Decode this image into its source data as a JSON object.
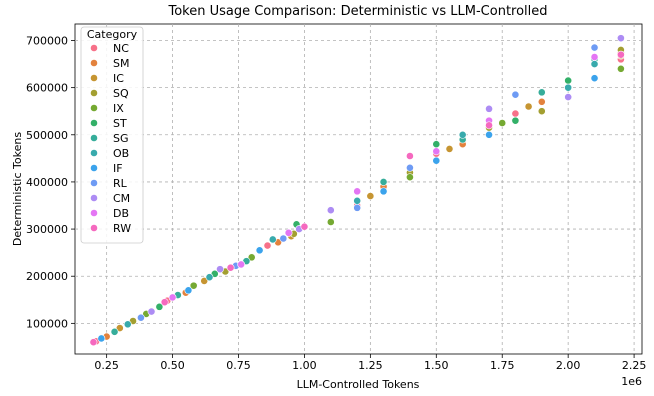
{
  "chart_data": {
    "type": "scatter",
    "title": "Token Usage Comparison: Deterministic vs LLM-Controlled",
    "xlabel": "LLM-Controlled Tokens",
    "ylabel": "Deterministic Tokens",
    "x_offset_label": "1e6",
    "xlim": [
      0.13,
      2.28
    ],
    "ylim": [
      35000,
      735000
    ],
    "x_ticks": [
      0.25,
      0.5,
      0.75,
      1.0,
      1.25,
      1.5,
      1.75,
      2.0,
      2.25
    ],
    "x_tick_labels": [
      "0.25",
      "0.50",
      "0.75",
      "1.00",
      "1.25",
      "1.50",
      "1.75",
      "2.00",
      "2.25"
    ],
    "y_ticks": [
      100000,
      200000,
      300000,
      400000,
      500000,
      600000,
      700000
    ],
    "y_tick_labels": [
      "100000",
      "200000",
      "300000",
      "400000",
      "500000",
      "600000",
      "700000"
    ],
    "grid": true,
    "legend": {
      "title": "Category",
      "placement": "top-left"
    },
    "series": [
      {
        "name": "NC",
        "color": "#f77189",
        "points": [
          [
            0.21,
            62000
          ],
          [
            0.48,
            148000
          ],
          [
            0.86,
            265000
          ],
          [
            1.2,
            350000
          ],
          [
            1.5,
            460000
          ],
          [
            1.8,
            545000
          ],
          [
            2.2,
            660000
          ]
        ]
      },
      {
        "name": "SM",
        "color": "#e3823d",
        "points": [
          [
            0.25,
            72000
          ],
          [
            0.55,
            165000
          ],
          [
            0.9,
            272000
          ],
          [
            1.3,
            390000
          ],
          [
            1.6,
            480000
          ],
          [
            1.9,
            570000
          ],
          [
            2.2,
            675000
          ]
        ]
      },
      {
        "name": "IC",
        "color": "#c69532",
        "points": [
          [
            0.3,
            90000
          ],
          [
            0.62,
            190000
          ],
          [
            0.95,
            285000
          ],
          [
            1.25,
            370000
          ],
          [
            1.55,
            470000
          ],
          [
            1.85,
            560000
          ],
          [
            2.2,
            668000
          ]
        ]
      },
      {
        "name": "SQ",
        "color": "#a39f31",
        "points": [
          [
            0.35,
            105000
          ],
          [
            0.7,
            210000
          ],
          [
            0.96,
            290000
          ],
          [
            1.4,
            420000
          ],
          [
            1.7,
            515000
          ],
          [
            1.9,
            550000
          ],
          [
            2.2,
            680000
          ]
        ]
      },
      {
        "name": "IX",
        "color": "#75a932",
        "points": [
          [
            0.4,
            120000
          ],
          [
            0.58,
            180000
          ],
          [
            0.8,
            240000
          ],
          [
            1.1,
            315000
          ],
          [
            1.4,
            410000
          ],
          [
            1.75,
            525000
          ],
          [
            2.2,
            640000
          ]
        ]
      },
      {
        "name": "ST",
        "color": "#33b068",
        "points": [
          [
            0.45,
            135000
          ],
          [
            0.66,
            205000
          ],
          [
            0.97,
            310000
          ],
          [
            1.5,
            480000
          ],
          [
            1.8,
            530000
          ],
          [
            2.0,
            615000
          ]
        ]
      },
      {
        "name": "SG",
        "color": "#36ad9a",
        "points": [
          [
            0.28,
            82000
          ],
          [
            0.52,
            160000
          ],
          [
            0.78,
            232000
          ],
          [
            1.3,
            400000
          ],
          [
            1.6,
            490000
          ],
          [
            1.9,
            590000
          ],
          [
            2.1,
            660000
          ]
        ]
      },
      {
        "name": "OB",
        "color": "#38aaac",
        "points": [
          [
            0.33,
            98000
          ],
          [
            0.64,
            198000
          ],
          [
            0.88,
            278000
          ],
          [
            1.2,
            360000
          ],
          [
            1.6,
            500000
          ],
          [
            2.0,
            600000
          ],
          [
            2.1,
            650000
          ]
        ]
      },
      {
        "name": "IF",
        "color": "#3ba3ec",
        "points": [
          [
            0.23,
            68000
          ],
          [
            0.56,
            170000
          ],
          [
            0.83,
            255000
          ],
          [
            1.3,
            380000
          ],
          [
            1.5,
            445000
          ],
          [
            1.7,
            500000
          ],
          [
            2.1,
            620000
          ]
        ]
      },
      {
        "name": "RL",
        "color": "#6e9bf4",
        "points": [
          [
            0.38,
            112000
          ],
          [
            0.74,
            222000
          ],
          [
            0.92,
            280000
          ],
          [
            1.2,
            345000
          ],
          [
            1.4,
            430000
          ],
          [
            1.8,
            585000
          ],
          [
            2.1,
            685000
          ]
        ]
      },
      {
        "name": "CM",
        "color": "#ad8cf4",
        "points": [
          [
            0.42,
            125000
          ],
          [
            0.68,
            215000
          ],
          [
            0.98,
            300000
          ],
          [
            1.1,
            340000
          ],
          [
            1.7,
            555000
          ],
          [
            2.0,
            580000
          ],
          [
            2.2,
            705000
          ]
        ]
      },
      {
        "name": "DB",
        "color": "#e476f4",
        "points": [
          [
            0.5,
            155000
          ],
          [
            0.76,
            225000
          ],
          [
            0.94,
            292000
          ],
          [
            1.2,
            380000
          ],
          [
            1.5,
            465000
          ],
          [
            1.7,
            530000
          ],
          [
            2.1,
            665000
          ]
        ]
      },
      {
        "name": "RW",
        "color": "#f569bf",
        "points": [
          [
            0.2,
            60000
          ],
          [
            0.47,
            145000
          ],
          [
            0.72,
            218000
          ],
          [
            1.0,
            305000
          ],
          [
            1.4,
            455000
          ],
          [
            1.7,
            520000
          ],
          [
            2.2,
            670000
          ]
        ]
      }
    ]
  }
}
